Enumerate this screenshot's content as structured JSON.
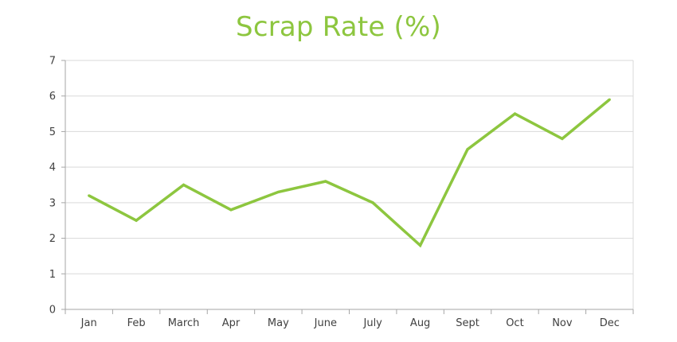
{
  "chart_data": {
    "type": "line",
    "title": "Scrap Rate (%)",
    "xlabel": "",
    "ylabel": "",
    "categories": [
      "Jan",
      "Feb",
      "March",
      "Apr",
      "May",
      "June",
      "July",
      "Aug",
      "Sept",
      "Oct",
      "Nov",
      "Dec"
    ],
    "series": [
      {
        "values": [
          3.2,
          2.5,
          3.5,
          2.8,
          3.3,
          3.6,
          3.0,
          1.8,
          4.5,
          5.5,
          4.8,
          5.9
        ]
      }
    ],
    "ylim": [
      0,
      7
    ],
    "yticks": [
      "0",
      "1",
      "2",
      "3",
      "4",
      "5",
      "6",
      "7"
    ],
    "grid": true,
    "legend": "none",
    "colors": {
      "line": "#8dc63f",
      "title": "#8dc63f",
      "grid": "#d9d9d9",
      "axis": "#a6a6a6"
    }
  }
}
